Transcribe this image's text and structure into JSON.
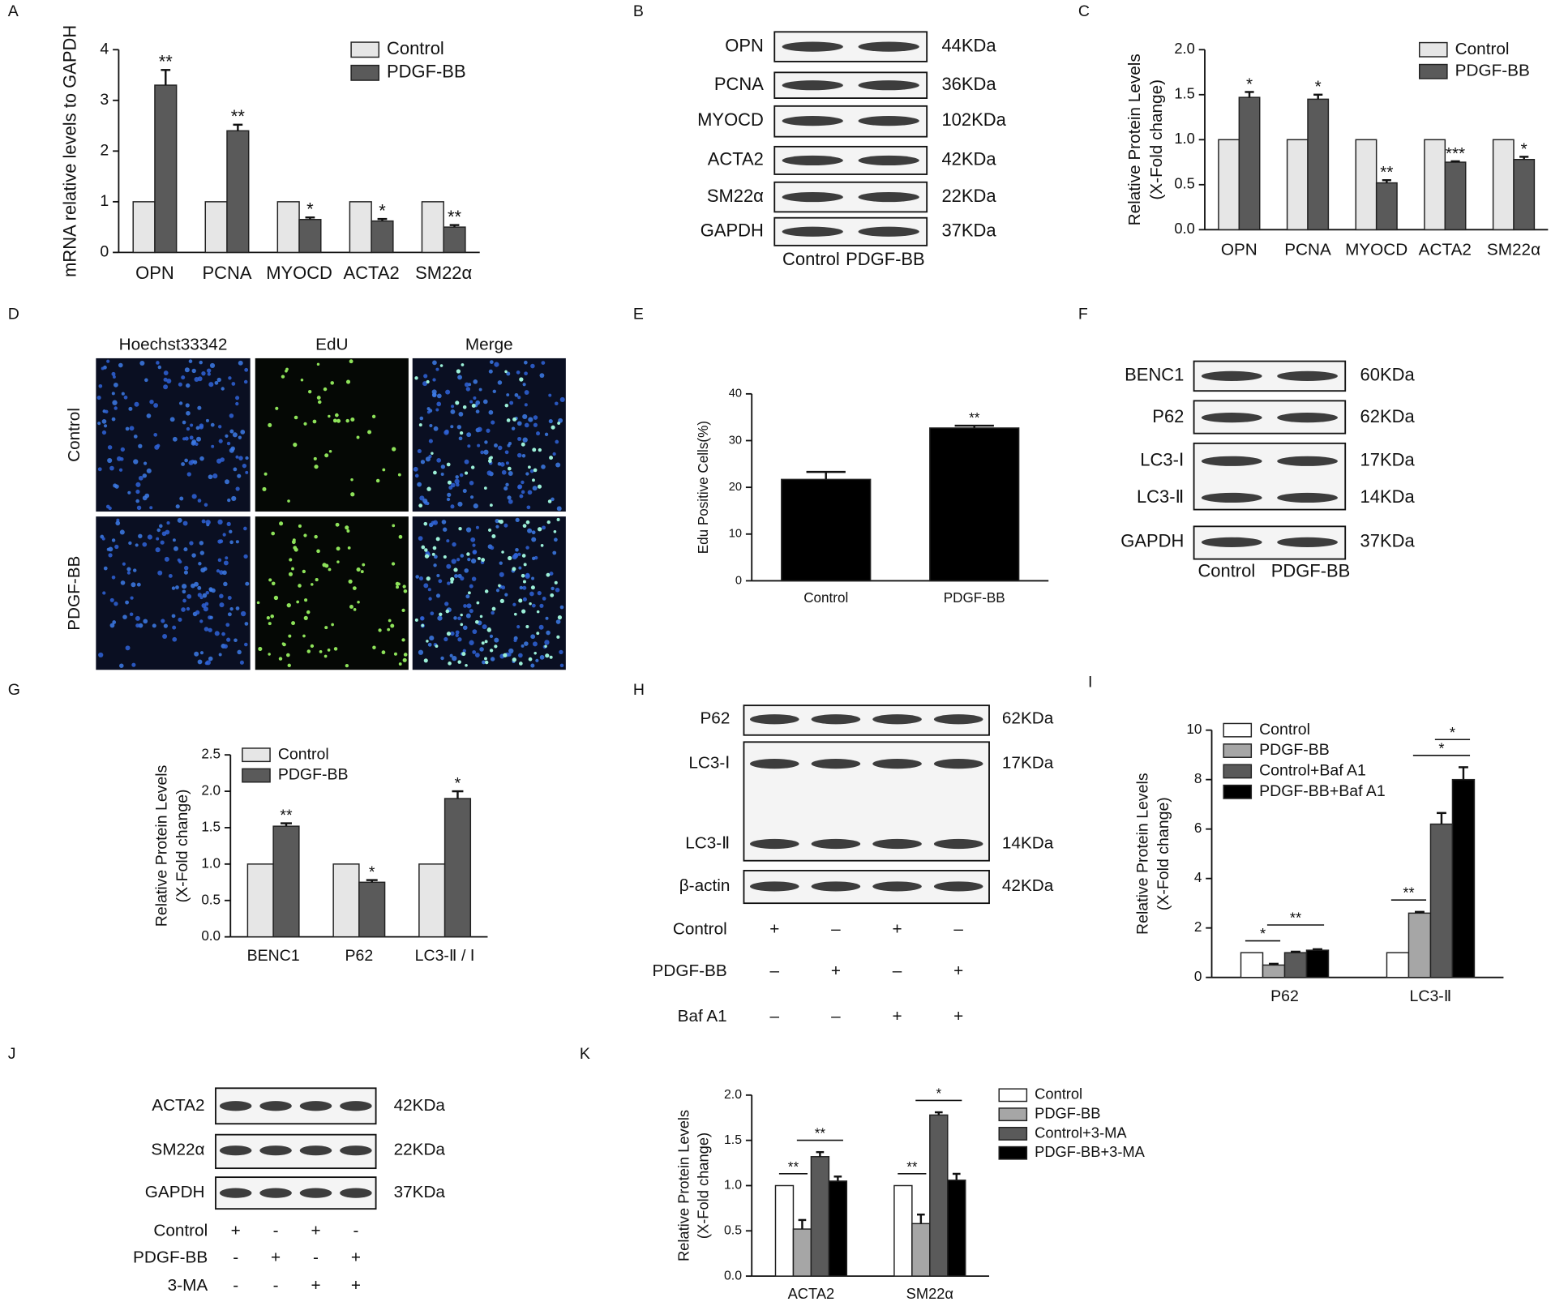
{
  "panel_labels": [
    "A",
    "B",
    "C",
    "D",
    "E",
    "F",
    "G",
    "H",
    "I",
    "J",
    "K"
  ],
  "chart_data": [
    {
      "type": "bar",
      "ylabel": [
        "mRNA relative levels to GAPDH"
      ],
      "categories": [
        "OPN",
        "PCNA",
        "MYOCD",
        "ACTA2",
        "SM22α"
      ],
      "series": [
        {
          "name": "Control",
          "color": "#e6e6e6",
          "values": [
            1,
            1,
            1,
            1,
            1
          ]
        },
        {
          "name": "PDGF-BB",
          "color": "#5a5a5a",
          "values": [
            3.3,
            2.4,
            0.65,
            0.62,
            0.5
          ],
          "errors": [
            0.3,
            0.12,
            0.04,
            0.04,
            0.04
          ],
          "significance": [
            "**",
            "**",
            "*",
            "*",
            "**"
          ]
        }
      ],
      "ylim": [
        0,
        4
      ],
      "yticks": [
        0,
        1,
        2,
        3,
        4
      ],
      "legend": "upper right"
    },
    {
      "type": "bar",
      "ylabel": [
        "Relative Protein Levels",
        "(X-Fold change)"
      ],
      "categories": [
        "OPN",
        "PCNA",
        "MYOCD",
        "ACTA2",
        "SM22α"
      ],
      "series": [
        {
          "name": "Control",
          "color": "#e6e6e6",
          "values": [
            1,
            1,
            1,
            1,
            1
          ]
        },
        {
          "name": "PDGF-BB",
          "color": "#5a5a5a",
          "values": [
            1.47,
            1.45,
            0.52,
            0.75,
            0.78
          ],
          "errors": [
            0.06,
            0.05,
            0.03,
            0.01,
            0.03
          ],
          "significance": [
            "*",
            "*",
            "**",
            "***",
            "*"
          ]
        }
      ],
      "ylim": [
        0,
        2
      ],
      "yticks": [
        {
          "value": 0,
          "label": "0.0"
        },
        0.5,
        {
          "value": 1,
          "label": "1.0"
        },
        1.5,
        {
          "value": 2,
          "label": "2.0"
        }
      ],
      "legend": "upper right"
    },
    {
      "type": "bar",
      "ylabel": [
        "Edu Positive Cells(%)"
      ],
      "categories": [
        "Control",
        "PDGF-BB"
      ],
      "values": [
        21.7,
        32.7
      ],
      "errors": [
        1.6,
        0.5
      ],
      "significance": [
        null,
        "**"
      ],
      "color": "#000000",
      "ylim": [
        0,
        40
      ],
      "yticks": [
        0,
        10,
        20,
        30,
        40
      ]
    },
    {
      "type": "bar",
      "ylabel": [
        "Relative Protein Levels",
        "(X-Fold change)"
      ],
      "categories": [
        "BENC1",
        "P62",
        "LC3-Ⅱ / Ⅰ"
      ],
      "series": [
        {
          "name": "Control",
          "color": "#e6e6e6",
          "values": [
            1,
            1,
            1
          ]
        },
        {
          "name": "PDGF-BB",
          "color": "#5a5a5a",
          "values": [
            1.52,
            0.75,
            1.9
          ],
          "errors": [
            0.04,
            0.03,
            0.1
          ],
          "significance": [
            "**",
            "*",
            "*"
          ]
        }
      ],
      "ylim": [
        0,
        2.5
      ],
      "yticks": [
        {
          "value": 0,
          "label": "0.0"
        },
        0.5,
        {
          "value": 1,
          "label": "1.0"
        },
        1.5,
        {
          "value": 2,
          "label": "2.0"
        },
        2.5
      ],
      "legend": "upper left"
    },
    {
      "type": "bar",
      "ylabel": [
        "Relative Protein Levels",
        "(X-Fold change)"
      ],
      "categories": [
        "P62",
        "LC3-Ⅱ"
      ],
      "series": [
        {
          "name": "Control",
          "color": "#ffffff",
          "values": [
            1,
            1
          ]
        },
        {
          "name": "PDGF-BB",
          "color": "#a6a6a6",
          "values": [
            0.5,
            2.6
          ],
          "errors": [
            0.05,
            0.05
          ]
        },
        {
          "name": "Control+Baf A1",
          "color": "#5a5a5a",
          "values": [
            1.0,
            6.2
          ],
          "errors": [
            0.04,
            0.45
          ]
        },
        {
          "name": "PDGF-BB+Baf A1",
          "color": "#000000",
          "values": [
            1.1,
            8.0
          ],
          "errors": [
            0.04,
            0.5
          ]
        }
      ],
      "comparisons": [
        {
          "label": "*",
          "category": "P62",
          "series": [
            "Control",
            "PDGF-BB"
          ]
        },
        {
          "label": "**",
          "category": "P62",
          "series": [
            "PDGF-BB",
            "PDGF-BB+Baf A1"
          ]
        },
        {
          "label": "**",
          "category": "LC3-Ⅱ",
          "series": [
            "Control",
            "PDGF-BB"
          ]
        },
        {
          "label": "*",
          "category": "LC3-Ⅱ",
          "series": [
            "PDGF-BB",
            "PDGF-BB+Baf A1"
          ]
        },
        {
          "label": "*",
          "category": "LC3-Ⅱ",
          "series": [
            "Control+Baf A1",
            "PDGF-BB+Baf A1"
          ]
        }
      ],
      "ylim": [
        0,
        10
      ],
      "yticks": [
        0,
        2,
        4,
        6,
        8,
        10
      ],
      "legend": "upper left"
    },
    {
      "type": "bar",
      "ylabel": [
        "Relative Protein Levels",
        "(X-Fold change)"
      ],
      "categories": [
        "ACTA2",
        "SM22α"
      ],
      "series": [
        {
          "name": "Control",
          "color": "#ffffff",
          "values": [
            1,
            1
          ]
        },
        {
          "name": "PDGF-BB",
          "color": "#a6a6a6",
          "values": [
            0.52,
            0.58
          ],
          "errors": [
            0.1,
            0.1
          ]
        },
        {
          "name": "Control+3-MA",
          "color": "#5a5a5a",
          "values": [
            1.32,
            1.78
          ],
          "errors": [
            0.05,
            0.03
          ]
        },
        {
          "name": "PDGF-BB+3-MA",
          "color": "#000000",
          "values": [
            1.05,
            1.06
          ],
          "errors": [
            0.05,
            0.07
          ]
        }
      ],
      "comparisons": [
        {
          "label": "**",
          "category": "ACTA2",
          "series": [
            "Control",
            "PDGF-BB"
          ]
        },
        {
          "label": "**",
          "category": "ACTA2",
          "series": [
            "PDGF-BB",
            "PDGF-BB+3-MA"
          ]
        },
        {
          "label": "**",
          "category": "SM22α",
          "series": [
            "Control",
            "PDGF-BB"
          ]
        },
        {
          "label": "*",
          "category": "SM22α",
          "series": [
            "PDGF-BB",
            "PDGF-BB+3-MA"
          ]
        }
      ],
      "ylim": [
        0,
        2
      ],
      "yticks": [
        {
          "value": 0,
          "label": "0.0"
        },
        0.5,
        {
          "value": 1,
          "label": "1.0"
        },
        1.5,
        {
          "value": 2,
          "label": "2.0"
        }
      ],
      "legend": "right"
    }
  ],
  "blots": [
    {
      "rows": [
        {
          "label": "OPN",
          "size": "44KDa"
        },
        {
          "label": "PCNA",
          "size": "36KDa"
        },
        {
          "label": "MYOCD",
          "size": "102KDa"
        },
        {
          "label": "ACTA2",
          "size": "42KDa"
        },
        {
          "label": "SM22α",
          "size": "22KDa"
        },
        {
          "label": "GAPDH",
          "size": "37KDa"
        }
      ],
      "lanes": [
        "Control",
        "PDGF-BB"
      ]
    },
    {
      "rows": [
        {
          "label": "BENC1",
          "size": "60KDa"
        },
        {
          "label": "P62",
          "size": "62KDa"
        },
        {
          "label": "LC3-Ⅰ",
          "size": "17KDa"
        },
        {
          "label": "LC3-Ⅱ",
          "size": "14KDa"
        },
        {
          "label": "GAPDH",
          "size": "37KDa"
        }
      ],
      "lanes": [
        "Control",
        "PDGF-BB"
      ]
    },
    {
      "rows": [
        {
          "label": "P62",
          "size": "62KDa"
        },
        {
          "label": "LC3-Ⅰ",
          "size": "17KDa"
        },
        {
          "label": "LC3-Ⅱ",
          "size": "14KDa"
        },
        {
          "label": "β-actin",
          "size": "42KDa"
        }
      ],
      "treatments": [
        {
          "label": "Control",
          "signs": [
            "+",
            "–",
            "+",
            "–"
          ]
        },
        {
          "label": "PDGF-BB",
          "signs": [
            "–",
            "+",
            "–",
            "+"
          ]
        },
        {
          "label": "Baf A1",
          "signs": [
            "–",
            "–",
            "+",
            "+"
          ]
        }
      ]
    },
    {
      "rows": [
        {
          "label": "ACTA2",
          "size": "42KDa"
        },
        {
          "label": "SM22α",
          "size": "22KDa"
        },
        {
          "label": "GAPDH",
          "size": "37KDa"
        }
      ],
      "treatments": [
        {
          "label": "Control",
          "signs": [
            "+",
            "-",
            "+",
            "-"
          ]
        },
        {
          "label": "PDGF-BB",
          "signs": [
            "-",
            "+",
            "-",
            "+"
          ]
        },
        {
          "label": "3-MA",
          "signs": [
            "-",
            "-",
            "+",
            "+"
          ]
        }
      ]
    }
  ],
  "microscopy": {
    "columns": [
      "Hoechst33342",
      "EdU",
      "Merge"
    ],
    "rows": [
      "Control",
      "PDGF-BB"
    ]
  }
}
